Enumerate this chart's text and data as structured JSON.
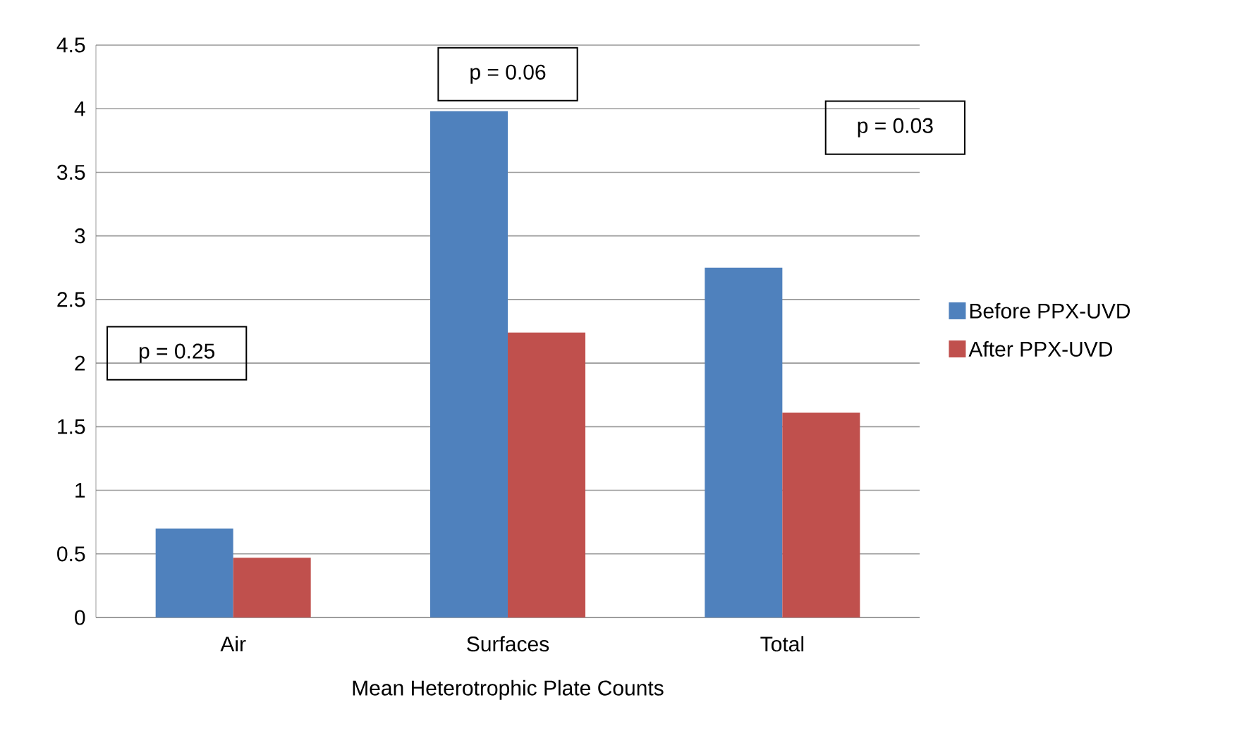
{
  "chart_data": {
    "type": "bar",
    "xlabel": "Mean Heterotrophic Plate Counts",
    "categories": [
      "Air",
      "Surfaces",
      "Total"
    ],
    "series": [
      {
        "name": "Before PPX-UVD",
        "color": "#4f81bd",
        "values": [
          0.7,
          3.98,
          2.75
        ]
      },
      {
        "name": "After PPX-UVD",
        "color": "#c0504d",
        "values": [
          0.47,
          2.24,
          1.61
        ]
      }
    ],
    "ylim": [
      0,
      4.5
    ],
    "yticks": [
      0,
      0.5,
      1,
      1.5,
      2,
      2.5,
      3,
      3.5,
      4,
      4.5
    ],
    "grid": "y",
    "legend": "right",
    "annotations": [
      "p = 0.25",
      "p = 0.06",
      "p = 0.03"
    ]
  }
}
